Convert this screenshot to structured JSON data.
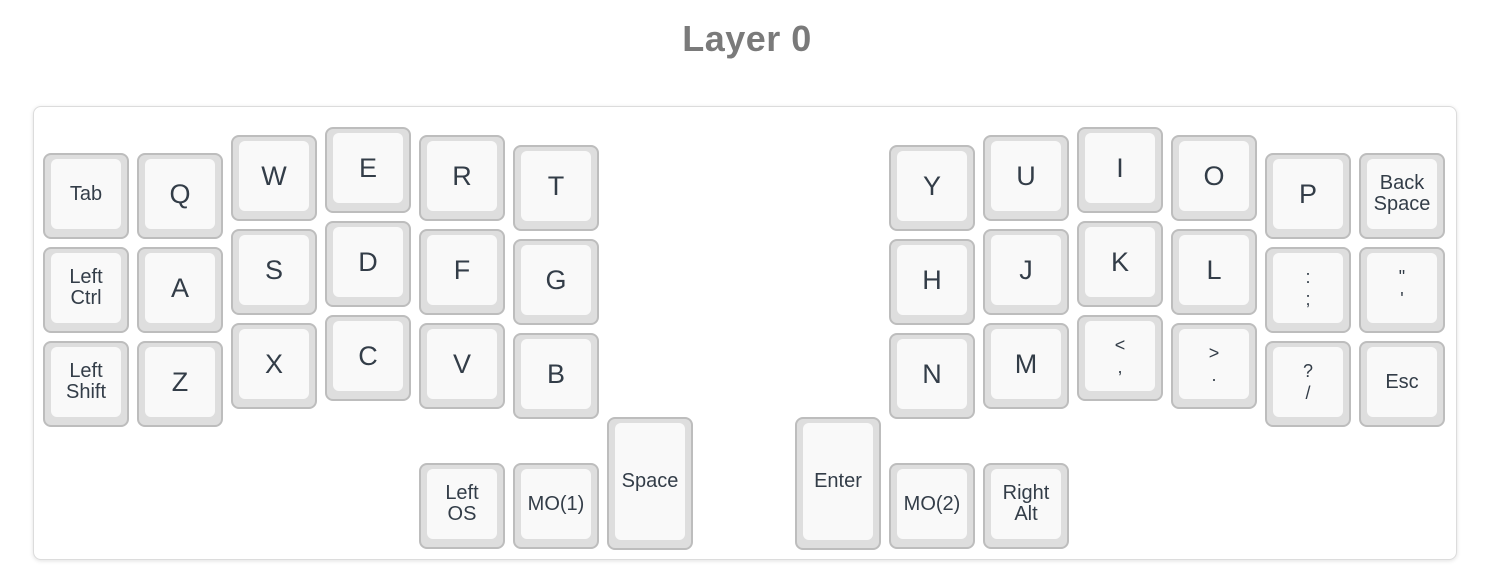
{
  "title": "Layer 0",
  "keys": [
    {
      "id": "tab",
      "l1": "Tab",
      "l2": "",
      "style": "small"
    },
    {
      "id": "q",
      "l1": "Q",
      "l2": "",
      "style": "big"
    },
    {
      "id": "w",
      "l1": "W",
      "l2": "",
      "style": "big"
    },
    {
      "id": "e",
      "l1": "E",
      "l2": "",
      "style": "big"
    },
    {
      "id": "r",
      "l1": "R",
      "l2": "",
      "style": "big"
    },
    {
      "id": "t",
      "l1": "T",
      "l2": "",
      "style": "big"
    },
    {
      "id": "y",
      "l1": "Y",
      "l2": "",
      "style": "big"
    },
    {
      "id": "u",
      "l1": "U",
      "l2": "",
      "style": "big"
    },
    {
      "id": "i",
      "l1": "I",
      "l2": "",
      "style": "big"
    },
    {
      "id": "o",
      "l1": "O",
      "l2": "",
      "style": "big"
    },
    {
      "id": "p",
      "l1": "P",
      "l2": "",
      "style": "big"
    },
    {
      "id": "backspace",
      "l1": "Back",
      "l2": "Space",
      "style": "small"
    },
    {
      "id": "left-ctrl",
      "l1": "Left",
      "l2": "Ctrl",
      "style": "small"
    },
    {
      "id": "a",
      "l1": "A",
      "l2": "",
      "style": "big"
    },
    {
      "id": "s",
      "l1": "S",
      "l2": "",
      "style": "big"
    },
    {
      "id": "d",
      "l1": "D",
      "l2": "",
      "style": "big"
    },
    {
      "id": "f",
      "l1": "F",
      "l2": "",
      "style": "big"
    },
    {
      "id": "g",
      "l1": "G",
      "l2": "",
      "style": "big"
    },
    {
      "id": "h",
      "l1": "H",
      "l2": "",
      "style": "big"
    },
    {
      "id": "j",
      "l1": "J",
      "l2": "",
      "style": "big"
    },
    {
      "id": "k",
      "l1": "K",
      "l2": "",
      "style": "big"
    },
    {
      "id": "l",
      "l1": "L",
      "l2": "",
      "style": "big"
    },
    {
      "id": "semicolon",
      "l1": ":",
      "l2": ";",
      "style": "sym"
    },
    {
      "id": "quote",
      "l1": "\"",
      "l2": "'",
      "style": "sym"
    },
    {
      "id": "left-shift",
      "l1": "Left",
      "l2": "Shift",
      "style": "small"
    },
    {
      "id": "z",
      "l1": "Z",
      "l2": "",
      "style": "big"
    },
    {
      "id": "x",
      "l1": "X",
      "l2": "",
      "style": "big"
    },
    {
      "id": "c",
      "l1": "C",
      "l2": "",
      "style": "big"
    },
    {
      "id": "v",
      "l1": "V",
      "l2": "",
      "style": "big"
    },
    {
      "id": "b",
      "l1": "B",
      "l2": "",
      "style": "big"
    },
    {
      "id": "n",
      "l1": "N",
      "l2": "",
      "style": "big"
    },
    {
      "id": "m",
      "l1": "M",
      "l2": "",
      "style": "big"
    },
    {
      "id": "comma",
      "l1": "<",
      "l2": ",",
      "style": "sym"
    },
    {
      "id": "period",
      "l1": ">",
      "l2": ".",
      "style": "sym"
    },
    {
      "id": "slash",
      "l1": "?",
      "l2": "/",
      "style": "sym"
    },
    {
      "id": "esc",
      "l1": "Esc",
      "l2": "",
      "style": "small"
    },
    {
      "id": "left-os",
      "l1": "Left",
      "l2": "OS",
      "style": "small"
    },
    {
      "id": "mo1",
      "l1": "MO(1)",
      "l2": "",
      "style": "small"
    },
    {
      "id": "space",
      "l1": "Space",
      "l2": "",
      "style": "small"
    },
    {
      "id": "enter",
      "l1": "Enter",
      "l2": "",
      "style": "small"
    },
    {
      "id": "mo2",
      "l1": "MO(2)",
      "l2": "",
      "style": "small"
    },
    {
      "id": "right-alt",
      "l1": "Right",
      "l2": "Alt",
      "style": "small"
    }
  ]
}
